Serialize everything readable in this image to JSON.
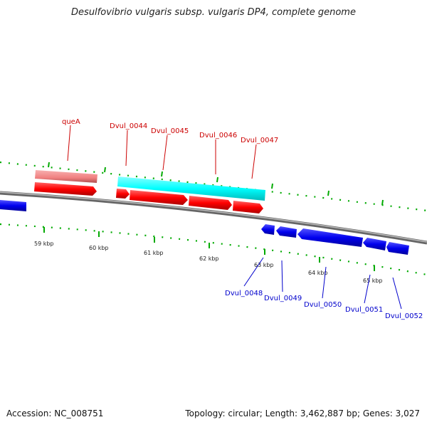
{
  "title": "Desulfovibrio vulgaris subsp. vulgaris DP4, complete genome",
  "footer": {
    "accession": "Accession: NC_008751",
    "topology": "Topology: circular; Length: 3,462,887 bp; Genes: 3,027"
  },
  "colors": {
    "forward_gene": "#ff0000",
    "forward_label": "#cc0000",
    "reverse_gene": "#0000ee",
    "reverse_label": "#0000cc",
    "cds_feature": "#00ffff",
    "pseudo_feature": "#f08080",
    "backbone": "#888888",
    "tick": "#00aa00"
  },
  "axis_labels": [
    "59 kbp",
    "60 kbp",
    "61 kbp",
    "62 kbp",
    "63 kbp",
    "64 kbp",
    "65 kbp"
  ],
  "forward_labels": [
    "queA",
    "Dvul_0044",
    "Dvul_0045",
    "Dvul_0046",
    "Dvul_0047"
  ],
  "reverse_labels": [
    "Dvul_0048",
    "Dvul_0049",
    "Dvul_0050",
    "Dvul_0051",
    "Dvul_0052"
  ]
}
